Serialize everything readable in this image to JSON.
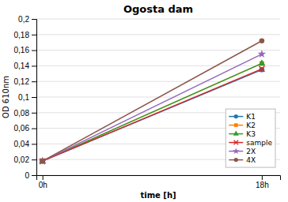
{
  "chart_data": {
    "type": "line",
    "title": "Ogosta dam",
    "xlabel": "time [h]",
    "ylabel": "OD 610nm",
    "x": [
      0,
      18
    ],
    "xlim": [
      -0.5,
      19.5
    ],
    "xticks": [
      {
        "value": 0,
        "label": "0h"
      },
      {
        "value": 18,
        "label": "18h"
      }
    ],
    "series": [
      {
        "name": "K1",
        "values": [
          0.018,
          0.135
        ],
        "marker": "circle"
      },
      {
        "name": "K2",
        "values": [
          0.018,
          0.143
        ],
        "marker": "square"
      },
      {
        "name": "K3",
        "values": [
          0.018,
          0.143
        ],
        "marker": "triangle"
      },
      {
        "name": "sample",
        "values": [
          0.018,
          0.136
        ],
        "marker": "x"
      },
      {
        "name": "2X",
        "values": [
          0.018,
          0.155
        ],
        "marker": "star"
      },
      {
        "name": "4X",
        "values": [
          0.018,
          0.172
        ],
        "marker": "circle"
      }
    ],
    "ylim": [
      0,
      0.2
    ],
    "yticks": [
      0,
      {
        "value": 0.02,
        "label": "0,02"
      },
      {
        "value": 0.04,
        "label": "0,04"
      },
      {
        "value": 0.06,
        "label": "0,06"
      },
      {
        "value": 0.08,
        "label": "0,08"
      },
      {
        "value": 0.1,
        "label": "0,1"
      },
      {
        "value": 0.12,
        "label": "0,12"
      },
      {
        "value": 0.14,
        "label": "0,14"
      },
      {
        "value": 0.16,
        "label": "0,16"
      },
      {
        "value": 0.18,
        "label": "0,18"
      },
      {
        "value": 0.2,
        "label": "0,2"
      }
    ],
    "grid": true,
    "legend": "lower right"
  }
}
